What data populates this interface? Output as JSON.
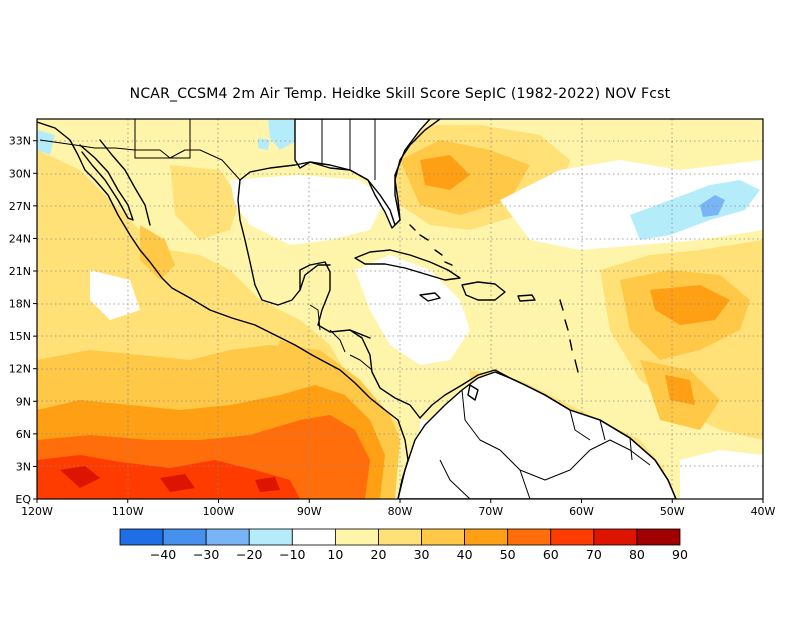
{
  "title": "NCAR_CCSM4  2m Air Temp. Heidke Skill Score SepIC (1982-2022) NOV Fcst",
  "lon_range": [
    -120,
    -40
  ],
  "lat_range": [
    0,
    35
  ],
  "x_ticks": [
    "120W",
    "110W",
    "100W",
    "90W",
    "80W",
    "70W",
    "60W",
    "50W",
    "40W"
  ],
  "y_ticks": [
    "EQ",
    "3N",
    "6N",
    "9N",
    "12N",
    "15N",
    "18N",
    "21N",
    "24N",
    "27N",
    "30N",
    "33N"
  ],
  "grid": "dotted",
  "colorbar": {
    "labels": [
      "−40",
      "−30",
      "−20",
      "−10",
      "10",
      "20",
      "30",
      "40",
      "50",
      "60",
      "70",
      "80",
      "90"
    ],
    "colors": [
      "#1e6ee6",
      "#4690ee",
      "#78b4f6",
      "#b4ecfa",
      "#ffffff",
      "#fff5aa",
      "#ffe178",
      "#ffc846",
      "#ffa014",
      "#ff6e0a",
      "#ff3c00",
      "#dc1400",
      "#a00000"
    ]
  },
  "palette": {
    "white": "#ffffff",
    "light_yellow": "#fff5aa",
    "yellow": "#ffe178",
    "light_orange": "#ffc846",
    "orange": "#ffa014",
    "red_orange": "#ff6e0a",
    "red": "#ff3c00",
    "light_blue": "#b4ecfa",
    "mid_blue": "#78b4f6",
    "dark_blue": "#4690ee"
  }
}
